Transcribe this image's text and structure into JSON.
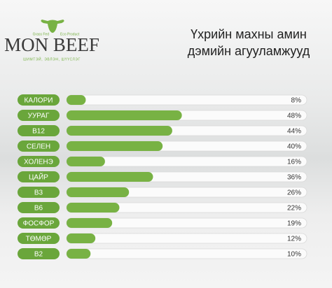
{
  "logo": {
    "name": "MON BEEF",
    "left_tag": "Grass Fed",
    "right_tag": "Eco Product",
    "tagline": "ШИМТЭЙ, ЭВЛЭН, ШҮҮСЛЭГ"
  },
  "chart_data": {
    "type": "bar",
    "title_lines": [
      "Үхрийн махны амин",
      "дэмийн агууламжууд"
    ],
    "categories": [
      "КАЛОРИ",
      "УУРАГ",
      "B12",
      "СЕЛЕН",
      "ХОЛЕНЭ",
      "ЦАЙР",
      "B3",
      "B6",
      "ФОСФОР",
      "ТӨМӨР",
      "B2"
    ],
    "values": [
      8,
      48,
      44,
      40,
      16,
      36,
      26,
      22,
      19,
      12,
      10
    ],
    "value_labels": [
      "8%",
      "48%",
      "44%",
      "40%",
      "16%",
      "36%",
      "26%",
      "22%",
      "19%",
      "12%",
      "10%"
    ],
    "color": "#78b244",
    "label_color": "#6aa63b",
    "xlim": [
      0,
      100
    ]
  }
}
